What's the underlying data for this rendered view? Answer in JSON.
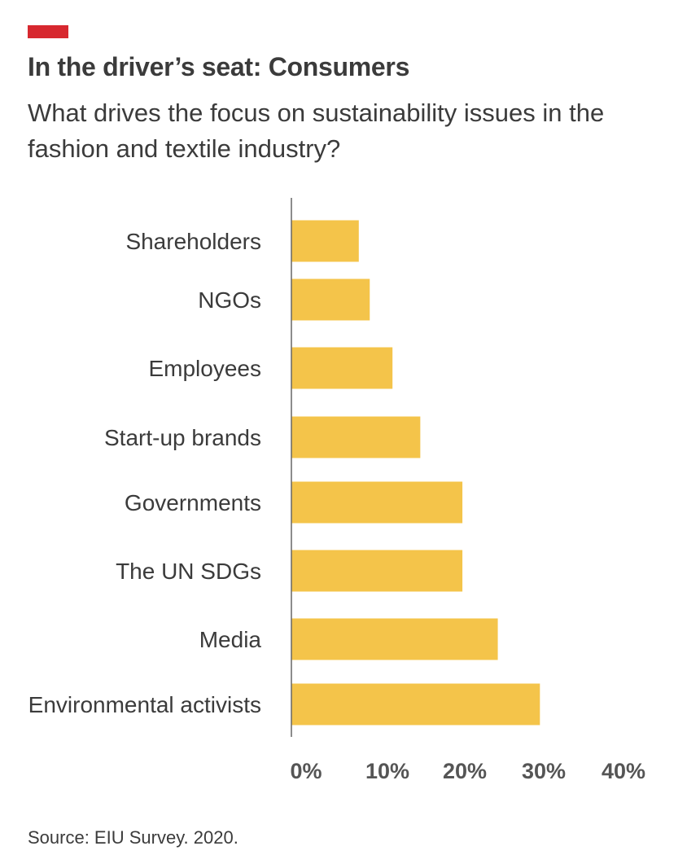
{
  "header": {
    "title": "In the driver’s seat: Consumers",
    "subtitle": "What drives the focus on sustainability issues in the fashion and textile industry?"
  },
  "colors": {
    "accent": "#d7282f",
    "bar": "#f4c44a",
    "axis": "#666666",
    "text": "#3b3b3b"
  },
  "chart_data": {
    "type": "bar",
    "orientation": "horizontal",
    "categories": [
      "Shareholders",
      "NGOs",
      "Employees",
      "Start-up brands",
      "Governments",
      "The UN SDGs",
      "Media",
      "Environmental activists"
    ],
    "values": [
      8,
      9.3,
      12,
      15.3,
      20.3,
      20.3,
      24.5,
      29.5
    ],
    "xlim": [
      0,
      40
    ],
    "xticks": [
      "0%",
      "10%",
      "20%",
      "30%",
      "40%"
    ],
    "grid": false
  },
  "footer": {
    "source": "Source: EIU Survey. 2020."
  }
}
